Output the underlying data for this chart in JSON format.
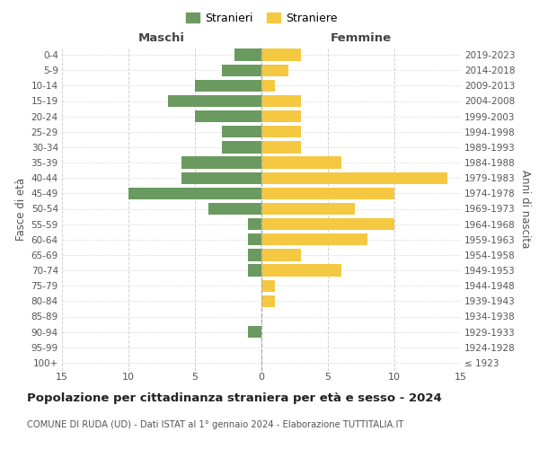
{
  "age_groups": [
    "100+",
    "95-99",
    "90-94",
    "85-89",
    "80-84",
    "75-79",
    "70-74",
    "65-69",
    "60-64",
    "55-59",
    "50-54",
    "45-49",
    "40-44",
    "35-39",
    "30-34",
    "25-29",
    "20-24",
    "15-19",
    "10-14",
    "5-9",
    "0-4"
  ],
  "birth_years": [
    "≤ 1923",
    "1924-1928",
    "1929-1933",
    "1934-1938",
    "1939-1943",
    "1944-1948",
    "1949-1953",
    "1954-1958",
    "1959-1963",
    "1964-1968",
    "1969-1973",
    "1974-1978",
    "1979-1983",
    "1984-1988",
    "1989-1993",
    "1994-1998",
    "1999-2003",
    "2004-2008",
    "2009-2013",
    "2014-2018",
    "2019-2023"
  ],
  "males": [
    0,
    0,
    1,
    0,
    0,
    0,
    1,
    1,
    1,
    1,
    4,
    10,
    6,
    6,
    3,
    3,
    5,
    7,
    5,
    3,
    2
  ],
  "females": [
    0,
    0,
    0,
    0,
    1,
    1,
    6,
    3,
    8,
    10,
    7,
    10,
    14,
    6,
    3,
    3,
    3,
    3,
    1,
    2,
    3
  ],
  "male_color": "#6a9a5f",
  "female_color": "#f5c842",
  "background_color": "#ffffff",
  "grid_color": "#cccccc",
  "title": "Popolazione per cittadinanza straniera per età e sesso - 2024",
  "subtitle": "COMUNE DI RUDA (UD) - Dati ISTAT al 1° gennaio 2024 - Elaborazione TUTTITALIA.IT",
  "legend_stranieri": "Stranieri",
  "legend_straniere": "Straniere",
  "xlabel_left": "Maschi",
  "xlabel_right": "Femmine",
  "ylabel_left": "Fasce di età",
  "ylabel_right": "Anni di nascita",
  "xlim": 15
}
